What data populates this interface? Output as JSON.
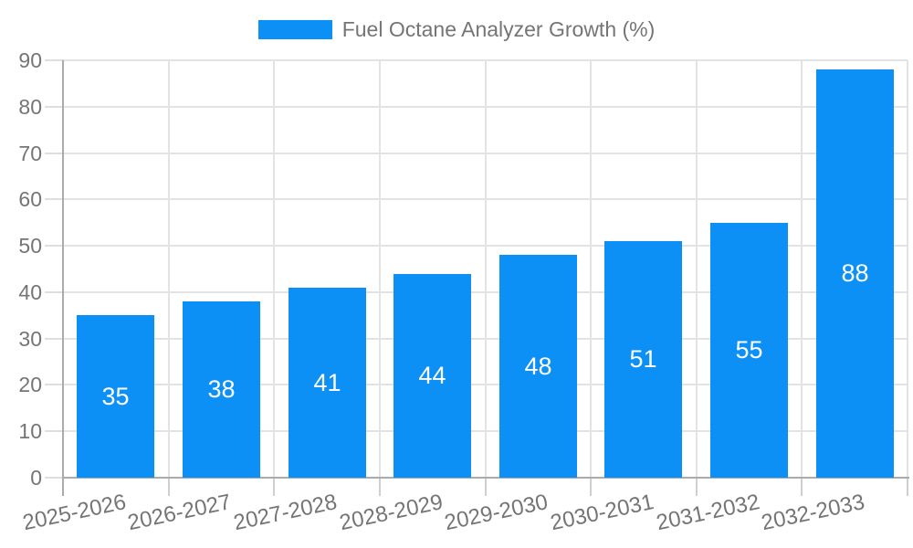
{
  "chart_data": {
    "type": "bar",
    "title": "Fuel Octane Analyzer Growth (%)",
    "categories": [
      "2025-2026",
      "2026-2027",
      "2027-2028",
      "2028-2029",
      "2029-2030",
      "2030-2031",
      "2031-2032",
      "2032-2033"
    ],
    "values": [
      35,
      38,
      41,
      44,
      48,
      51,
      55,
      88
    ],
    "xlabel": "",
    "ylabel": "",
    "ylim": [
      0,
      90
    ],
    "yticks": [
      0,
      10,
      20,
      30,
      40,
      50,
      60,
      70,
      80,
      90
    ],
    "grid": true,
    "legend_position": "top-center",
    "colors": {
      "bar": "#0d90f5",
      "value_label": "#ffffff",
      "axis_text": "#757575",
      "legend_text": "#757575",
      "gridline": "#e3e3e3",
      "axis_line": "#ababab",
      "x_tick": "#cfcfcf",
      "y_tick": "#dedede",
      "background": "#ffffff"
    }
  }
}
